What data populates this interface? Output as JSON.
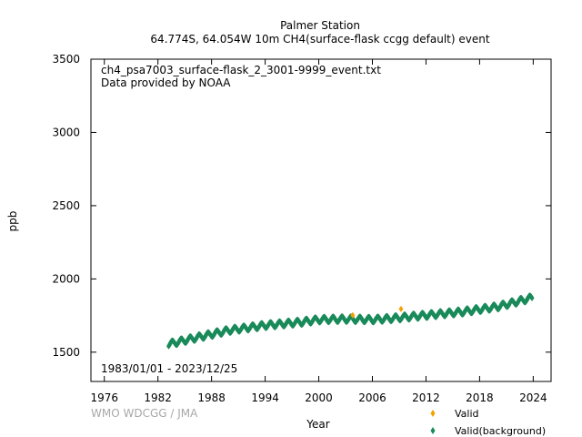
{
  "chart_data": {
    "type": "scatter",
    "title": "Palmer Station",
    "subtitle": "64.774S, 64.054W 10m    CH4(surface-flask ccgg default) event",
    "xlabel": "Year",
    "ylabel": "ppb",
    "xlim": [
      1974.5,
      2026
    ],
    "ylim": [
      1300,
      3500
    ],
    "x_ticks": [
      1976,
      1982,
      1988,
      1994,
      2000,
      2006,
      2012,
      2018,
      2024
    ],
    "y_ticks": [
      1500,
      2000,
      2500,
      3000,
      3500
    ],
    "annotations": [
      "ch4_psa7003_surface-flask_2_3001-9999_event.txt",
      "Data provided by NOAA",
      "1983/01/01 - 2023/12/25"
    ],
    "credit": "WMO WDCGG / JMA",
    "legend_position": "bottom-right",
    "grid": false,
    "series": [
      {
        "name": "Valid",
        "color": "#f5a000",
        "marker": "diamond",
        "x": [
          2003.8,
          2009.2
        ],
        "y": [
          1752,
          1795
        ]
      },
      {
        "name": "Valid(background)",
        "color": "#1a8a5a",
        "marker": "diamond",
        "seasonal_amplitude_ppb": 18,
        "trend": {
          "x": [
            1983.2,
            1986,
            1990,
            1994,
            1998,
            2000,
            2003,
            2006,
            2008,
            2012,
            2016,
            2020,
            2023.9
          ],
          "y": [
            1555,
            1595,
            1650,
            1683,
            1705,
            1722,
            1726,
            1722,
            1730,
            1752,
            1775,
            1810,
            1872
          ]
        }
      }
    ]
  }
}
